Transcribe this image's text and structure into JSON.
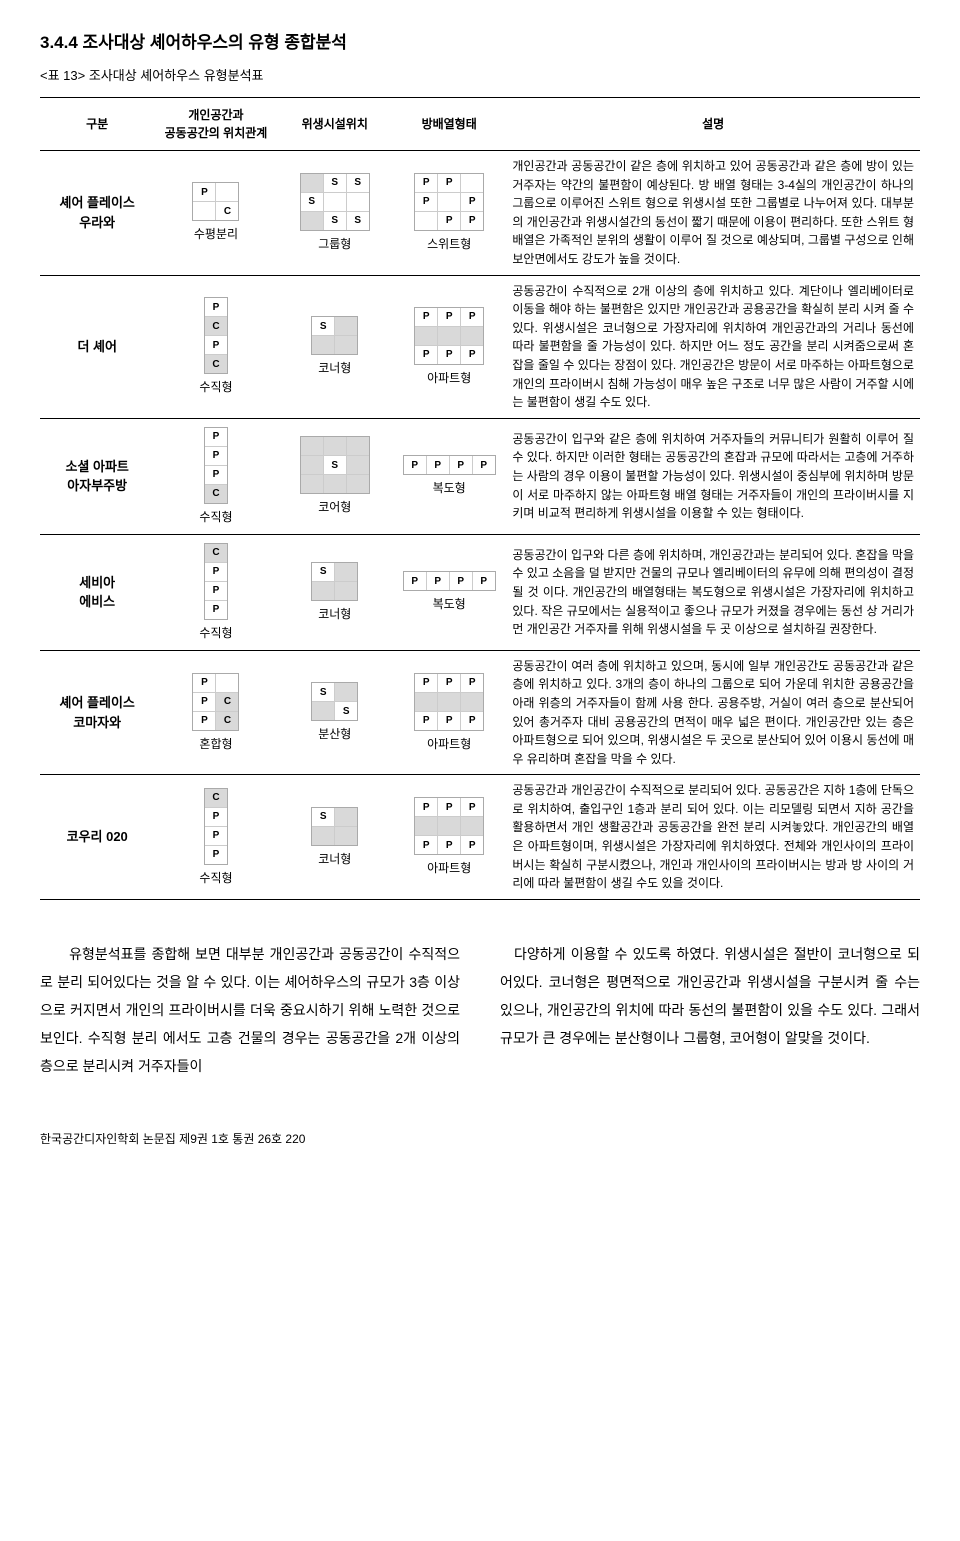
{
  "section_title": "3.4.4 조사대상 셰어하우스의 유형 종합분석",
  "table_caption": "<표 13> 조사대상 셰어하우스 유형분석표",
  "headers": {
    "c1": "구분",
    "c2": "개인공간과\n공동공간의 위치관계",
    "c3": "위생시설위치",
    "c4": "방배열형태",
    "c5": "설명"
  },
  "rows": [
    {
      "name": "셰어 플레이스\n우라와",
      "t2": "수평분리",
      "t3": "그룹형",
      "t4": "스위트형",
      "desc": "개인공간과 공동공간이 같은 층에 위치하고 있어 공동공간과 같은 층에 방이 있는 거주자는 약간의 불편함이 예상된다. 방 배열 형태는 3-4실의 개인공간이 하나의 그룹으로 이루어진 스위트 형으로 위생시설 또한 그룹별로 나누어져 있다. 대부분의 개인공간과 위생시설간의 동선이 짧기 때문에 이용이 편리하다. 또한 스위트 형 배열은 가족적인 분위의 생활이 이루어 질 것으로 예상되며, 그룹별 구성으로 인해 보안면에서도 강도가 높을 것이다.",
      "d2": {
        "rows": 2,
        "cols": 2,
        "cells": [
          [
            "P",
            ""
          ],
          [
            "",
            "C"
          ]
        ],
        "gray": []
      },
      "d3": {
        "rows": 3,
        "cols": 3,
        "cells": [
          [
            "",
            "S",
            "S"
          ],
          [
            "S",
            "",
            ""
          ],
          [
            "",
            "S",
            "S"
          ]
        ],
        "gray": [
          [
            0,
            0
          ],
          [
            2,
            0
          ]
        ]
      },
      "d4": {
        "rows": 3,
        "cols": 3,
        "cells": [
          [
            "P",
            "P",
            ""
          ],
          [
            "P",
            "",
            "P"
          ],
          [
            "",
            "P",
            "P"
          ]
        ],
        "gray": []
      }
    },
    {
      "name": "더 셰어",
      "t2": "수직형",
      "t3": "코너형",
      "t4": "아파트형",
      "desc": "공동공간이 수직적으로 2개 이상의 층에 위치하고 있다. 계단이나 엘리베이터로 이동을 해야 하는 불편함은 있지만 개인공간과 공용공간을 확실히 분리 시켜 줄 수 있다. 위생시설은 코너형으로 가장자리에 위치하여 개인공간과의 거리나 동선에 따라 불편함을 줄 가능성이 있다. 하지만 어느 정도 공간을 분리 시켜줌으로써 혼잡을 줄일 수 있다는 장점이 있다. 개인공간은 방문이 서로 마주하는 아파트형으로 개인의 프라이버시 침해 가능성이 매우 높은 구조로 너무 많은 사람이 거주할 시에는 불편함이 생길 수도 있다.",
      "d2": {
        "rows": 4,
        "cols": 1,
        "cells": [
          [
            "P"
          ],
          [
            "C"
          ],
          [
            "P"
          ],
          [
            "C"
          ]
        ],
        "gray": [
          [
            1,
            0
          ],
          [
            3,
            0
          ]
        ]
      },
      "d3": {
        "rows": 2,
        "cols": 2,
        "cells": [
          [
            "S",
            ""
          ],
          [
            "",
            ""
          ]
        ],
        "gray": [
          [
            0,
            1
          ],
          [
            1,
            0
          ],
          [
            1,
            1
          ]
        ]
      },
      "d4": {
        "rows": 3,
        "cols": 3,
        "cells": [
          [
            "P",
            "P",
            "P"
          ],
          [
            "",
            "",
            ""
          ],
          [
            "P",
            "P",
            "P"
          ]
        ],
        "gray": [
          [
            1,
            0
          ],
          [
            1,
            1
          ],
          [
            1,
            2
          ]
        ]
      }
    },
    {
      "name": "소셜 아파트\n아자부주방",
      "t2": "수직형",
      "t3": "코어형",
      "t4": "복도형",
      "desc": "공동공간이 입구와 같은 층에 위치하여 거주자들의 커뮤니티가 원활히 이루어 질 수 있다. 하지만 이러한 형태는 공동공간의 혼잡과 규모에 따라서는 고층에 거주하는 사람의 경우 이용이 불편할 가능성이 있다. 위생시설이 중심부에 위치하며 방문이 서로 마주하지 않는 아파트형 배열 형태는 거주자들이 개인의 프라이버시를 지키며 비교적 편리하게 위생시설을 이용할 수 있는 형태이다.",
      "d2": {
        "rows": 4,
        "cols": 1,
        "cells": [
          [
            "P"
          ],
          [
            "P"
          ],
          [
            "P"
          ],
          [
            "C"
          ]
        ],
        "gray": [
          [
            3,
            0
          ]
        ]
      },
      "d3": {
        "rows": 3,
        "cols": 3,
        "cells": [
          [
            "",
            "",
            ""
          ],
          [
            "",
            "S",
            ""
          ],
          [
            "",
            "",
            ""
          ]
        ],
        "gray": [
          [
            0,
            0
          ],
          [
            0,
            1
          ],
          [
            0,
            2
          ],
          [
            1,
            0
          ],
          [
            1,
            2
          ],
          [
            2,
            0
          ],
          [
            2,
            1
          ],
          [
            2,
            2
          ]
        ]
      },
      "d4": {
        "rows": 1,
        "cols": 4,
        "cells": [
          [
            "P",
            "P",
            "P",
            "P"
          ]
        ],
        "gray": []
      }
    },
    {
      "name": "세비아\n에비스",
      "t2": "수직형",
      "t3": "코너형",
      "t4": "복도형",
      "desc": "공동공간이 입구와 다른 층에 위치하며, 개인공간과는 분리되어 있다. 혼잡을 막을 수 있고 소음을 덜 받지만 건물의 규모나 엘리베이터의 유무에 의해 편의성이 결정 될 것 이다. 개인공간의 배열형태는 복도형으로 위생시설은 가장자리에 위치하고 있다. 작은 규모에서는 실용적이고 좋으나 규모가 커졌을 경우에는 동선 상 거리가 먼 개인공간 거주자를 위해 위생시설을 두 곳 이상으로 설치하길 권장한다.",
      "d2": {
        "rows": 4,
        "cols": 1,
        "cells": [
          [
            "C"
          ],
          [
            "P"
          ],
          [
            "P"
          ],
          [
            "P"
          ]
        ],
        "gray": [
          [
            0,
            0
          ]
        ]
      },
      "d3": {
        "rows": 2,
        "cols": 2,
        "cells": [
          [
            "S",
            ""
          ],
          [
            "",
            ""
          ]
        ],
        "gray": [
          [
            0,
            1
          ],
          [
            1,
            0
          ],
          [
            1,
            1
          ]
        ]
      },
      "d4": {
        "rows": 1,
        "cols": 4,
        "cells": [
          [
            "P",
            "P",
            "P",
            "P"
          ]
        ],
        "gray": []
      }
    },
    {
      "name": "셰어 플레이스\n코마자와",
      "t2": "혼합형",
      "t3": "분산형",
      "t4": "아파트형",
      "desc": "공동공간이 여러 층에 위치하고 있으며, 동시에 일부 개인공간도 공동공간과 같은 층에 위치하고 있다. 3개의 층이 하나의 그룹으로 되어 가운데 위치한 공용공간을 아래 위층의 거주자들이 함께 사용 한다. 공용주방, 거실이 여러 층으로 분산되어 있어 총거주자 대비 공용공간의 면적이 매우 넓은 편이다. 개인공간만 있는 층은 아파트형으로 되어 있으며, 위생시설은 두 곳으로 분산되어 있어 이용시 동선에 매우 유리하며 혼잡을 막을 수 있다.",
      "d2": {
        "rows": 3,
        "cols": 2,
        "cells": [
          [
            "P",
            ""
          ],
          [
            "P",
            "C"
          ],
          [
            "P",
            "C"
          ]
        ],
        "gray": [
          [
            1,
            1
          ],
          [
            2,
            1
          ]
        ]
      },
      "d3": {
        "rows": 2,
        "cols": 2,
        "cells": [
          [
            "S",
            ""
          ],
          [
            "",
            "S"
          ]
        ],
        "gray": [
          [
            0,
            1
          ],
          [
            1,
            0
          ]
        ]
      },
      "d4": {
        "rows": 3,
        "cols": 3,
        "cells": [
          [
            "P",
            "P",
            "P"
          ],
          [
            "",
            "",
            ""
          ],
          [
            "P",
            "P",
            "P"
          ]
        ],
        "gray": [
          [
            1,
            0
          ],
          [
            1,
            1
          ],
          [
            1,
            2
          ]
        ]
      }
    },
    {
      "name": "코우리 020",
      "t2": "수직형",
      "t3": "코너형",
      "t4": "아파트형",
      "desc": "공동공간과 개인공간이 수직적으로 분리되어 있다. 공동공간은 지하 1층에 단독으로 위치하여, 출입구인 1층과 분리 되어 있다. 이는 리모델링 되면서 지하 공간을 활용하면서 개인 생활공간과 공동공간을 완전 분리 시켜놓았다. 개인공간의 배열은 아파트형이며, 위생시설은 가장자리에 위치하였다. 전체와 개인사이의 프라이버시는 확실히 구분시켰으나, 개인과 개인사이의 프라이버시는 방과 방 사이의 거리에 따라 불편함이 생길 수도 있을 것이다.",
      "d2": {
        "rows": 4,
        "cols": 1,
        "cells": [
          [
            "C"
          ],
          [
            "P"
          ],
          [
            "P"
          ],
          [
            "P"
          ]
        ],
        "gray": [
          [
            0,
            0
          ]
        ]
      },
      "d3": {
        "rows": 2,
        "cols": 2,
        "cells": [
          [
            "S",
            ""
          ],
          [
            "",
            ""
          ]
        ],
        "gray": [
          [
            0,
            1
          ],
          [
            1,
            0
          ],
          [
            1,
            1
          ]
        ]
      },
      "d4": {
        "rows": 3,
        "cols": 3,
        "cells": [
          [
            "P",
            "P",
            "P"
          ],
          [
            "",
            "",
            ""
          ],
          [
            "P",
            "P",
            "P"
          ]
        ],
        "gray": [
          [
            1,
            0
          ],
          [
            1,
            1
          ],
          [
            1,
            2
          ]
        ]
      }
    }
  ],
  "body_left": "　유형분석표를 종합해 보면 대부분 개인공간과 공동공간이 수직적으로 분리 되어있다는 것을 알 수 있다. 이는 셰어하우스의 규모가 3층 이상으로 커지면서 개인의 프라이버시를 더욱 중요시하기 위해 노력한 것으로 보인다. 수직형 분리 에서도 고층 건물의 경우는 공동공간을 2개 이상의 층으로 분리시켜 거주자들이",
  "body_right": "다양하게 이용할 수 있도록 하였다. 위생시설은 절반이 코너형으로 되어있다. 코너형은 평면적으로 개인공간과 위생시설을 구분시켜 줄 수는 있으나, 개인공간의 위치에 따라 동선의 불편함이 있을 수도 있다. 그래서 규모가 큰 경우에는 분산형이나 그룹형, 코어형이 알맞을 것이다.",
  "footer": "한국공간디자인학회 논문집 제9권 1호 통권 26호  220"
}
